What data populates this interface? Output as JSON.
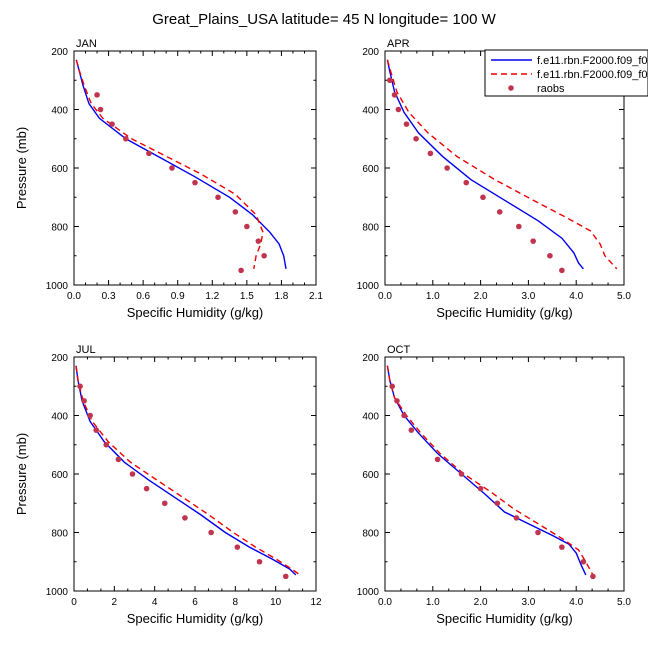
{
  "figure": {
    "title": "Great_Plains_USA  latitude= 45 N longitude= 100 W",
    "legend": {
      "placement": "top-right of APR panel",
      "entries": [
        {
          "label": "f.e11.rbn.F2000.f09_f0",
          "color": "#0000ee",
          "style": "solid"
        },
        {
          "label": "f.e11.rbn.F2000.f09_f0",
          "color": "#ee0000",
          "style": "dashed"
        },
        {
          "label": "raobs",
          "color": "#c0344f",
          "style": "marker"
        }
      ]
    }
  },
  "chart_data": [
    {
      "type": "line",
      "panel": "JAN",
      "xlabel": "Specific Humidity (g/kg)",
      "ylabel": "Pressure (mb)",
      "xlim": [
        0,
        2.1
      ],
      "xticks": [
        "0.0",
        "0.3",
        "0.6",
        "0.9",
        "1.2",
        "1.5",
        "1.8",
        "2.1"
      ],
      "ylim": [
        1000,
        200
      ],
      "yticks": [
        "200",
        "400",
        "600",
        "800",
        "1000"
      ],
      "series": [
        {
          "style": "solid",
          "color": "#0000ee",
          "x": [
            0.02,
            0.04,
            0.08,
            0.13,
            0.22,
            0.45,
            0.75,
            1.05,
            1.35,
            1.55,
            1.7,
            1.78,
            1.82,
            1.84
          ],
          "y": [
            230,
            260,
            320,
            380,
            430,
            500,
            565,
            630,
            700,
            760,
            820,
            860,
            900,
            945
          ]
        },
        {
          "style": "dashed",
          "color": "#ee0000",
          "x": [
            0.02,
            0.04,
            0.09,
            0.15,
            0.25,
            0.5,
            0.8,
            1.1,
            1.4,
            1.58,
            1.64,
            1.62,
            1.58,
            1.56
          ],
          "y": [
            230,
            260,
            320,
            380,
            430,
            500,
            560,
            620,
            690,
            760,
            820,
            860,
            900,
            945
          ]
        },
        {
          "style": "markers",
          "color": "#c0344f",
          "x": [
            0.2,
            0.23,
            0.33,
            0.45,
            0.65,
            0.85,
            1.05,
            1.25,
            1.4,
            1.5,
            1.6,
            1.65,
            1.45
          ],
          "y": [
            350,
            400,
            450,
            500,
            550,
            600,
            650,
            700,
            750,
            800,
            850,
            900,
            950
          ]
        }
      ]
    },
    {
      "type": "line",
      "panel": "APR",
      "xlabel": "Specific Humidity (g/kg)",
      "ylabel": "",
      "xlim": [
        0,
        5
      ],
      "xticks": [
        "0.0",
        "1.0",
        "2.0",
        "3.0",
        "4.0",
        "5.0"
      ],
      "ylim": [
        1000,
        200
      ],
      "yticks": [
        "200",
        "400",
        "600",
        "800",
        "1000"
      ],
      "series": [
        {
          "style": "solid",
          "color": "#0000ee",
          "x": [
            0.05,
            0.1,
            0.2,
            0.4,
            0.7,
            1.2,
            1.8,
            2.5,
            3.2,
            3.7,
            3.95,
            4.05,
            4.15
          ],
          "y": [
            230,
            270,
            340,
            410,
            480,
            560,
            640,
            710,
            780,
            840,
            890,
            925,
            945
          ]
        },
        {
          "style": "dashed",
          "color": "#ee0000",
          "x": [
            0.05,
            0.12,
            0.25,
            0.5,
            0.9,
            1.5,
            2.3,
            3.1,
            3.8,
            4.3,
            4.5,
            4.6,
            4.85
          ],
          "y": [
            230,
            270,
            340,
            410,
            480,
            560,
            640,
            710,
            770,
            815,
            860,
            900,
            945
          ]
        },
        {
          "style": "markers",
          "color": "#c0344f",
          "x": [
            0.1,
            0.2,
            0.28,
            0.45,
            0.65,
            0.95,
            1.3,
            1.7,
            2.05,
            2.4,
            2.8,
            3.1,
            3.45,
            3.7
          ],
          "y": [
            300,
            350,
            400,
            450,
            500,
            550,
            600,
            650,
            700,
            750,
            800,
            850,
            900,
            950
          ]
        }
      ]
    },
    {
      "type": "line",
      "panel": "JUL",
      "xlabel": "Specific Humidity (g/kg)",
      "ylabel": "Pressure (mb)",
      "xlim": [
        0,
        12
      ],
      "xticks": [
        "0",
        "2",
        "4",
        "6",
        "8",
        "10",
        "12"
      ],
      "ylim": [
        1000,
        200
      ],
      "yticks": [
        "200",
        "400",
        "600",
        "800",
        "1000"
      ],
      "series": [
        {
          "style": "solid",
          "color": "#0000ee",
          "x": [
            0.1,
            0.2,
            0.4,
            0.8,
            1.5,
            2.5,
            3.7,
            5.0,
            6.3,
            7.5,
            8.7,
            9.8,
            10.7,
            11.0
          ],
          "y": [
            230,
            280,
            350,
            420,
            490,
            560,
            620,
            680,
            740,
            800,
            850,
            890,
            925,
            945
          ]
        },
        {
          "style": "dashed",
          "color": "#ee0000",
          "x": [
            0.1,
            0.2,
            0.45,
            0.9,
            1.7,
            2.8,
            4.1,
            5.4,
            6.7,
            7.9,
            9.0,
            10.0,
            10.8,
            11.2
          ],
          "y": [
            230,
            280,
            350,
            420,
            490,
            560,
            620,
            680,
            740,
            800,
            850,
            890,
            925,
            945
          ]
        },
        {
          "style": "markers",
          "color": "#c0344f",
          "x": [
            0.3,
            0.5,
            0.8,
            1.1,
            1.6,
            2.2,
            2.9,
            3.6,
            4.5,
            5.5,
            6.8,
            8.1,
            9.2,
            10.5
          ],
          "y": [
            300,
            350,
            400,
            450,
            500,
            550,
            600,
            650,
            700,
            750,
            800,
            850,
            900,
            950
          ]
        }
      ]
    },
    {
      "type": "line",
      "panel": "OCT",
      "xlabel": "Specific Humidity (g/kg)",
      "ylabel": "",
      "xlim": [
        0,
        5
      ],
      "xticks": [
        "0.0",
        "1.0",
        "2.0",
        "3.0",
        "4.0",
        "5.0"
      ],
      "ylim": [
        1000,
        200
      ],
      "yticks": [
        "200",
        "400",
        "600",
        "800",
        "1000"
      ],
      "series": [
        {
          "style": "solid",
          "color": "#0000ee",
          "x": [
            0.05,
            0.1,
            0.2,
            0.4,
            0.7,
            1.1,
            1.6,
            2.1,
            2.5,
            3.0,
            3.5,
            3.85,
            4.0,
            4.1,
            4.2
          ],
          "y": [
            230,
            280,
            340,
            400,
            460,
            530,
            600,
            670,
            730,
            770,
            810,
            840,
            870,
            910,
            945
          ]
        },
        {
          "style": "dashed",
          "color": "#ee0000",
          "x": [
            0.05,
            0.1,
            0.2,
            0.45,
            0.75,
            1.15,
            1.65,
            2.2,
            2.7,
            3.2,
            3.7,
            4.05,
            4.2,
            4.35
          ],
          "y": [
            230,
            280,
            340,
            400,
            460,
            530,
            600,
            660,
            720,
            770,
            820,
            860,
            900,
            945
          ]
        },
        {
          "style": "markers",
          "color": "#c0344f",
          "x": [
            0.15,
            0.25,
            0.4,
            0.55,
            1.1,
            1.6,
            2.0,
            2.35,
            2.75,
            3.2,
            3.7,
            4.15,
            4.35
          ],
          "y": [
            300,
            350,
            400,
            450,
            550,
            600,
            650,
            700,
            750,
            800,
            850,
            900,
            950
          ]
        }
      ]
    }
  ]
}
